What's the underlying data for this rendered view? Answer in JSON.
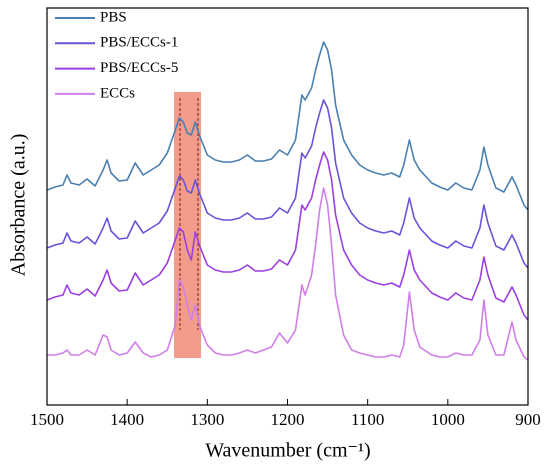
{
  "chart_data": {
    "type": "line",
    "xlabel": "Wavenumber (cm⁻¹)",
    "ylabel": "Absorbance (a.u.)",
    "xlim": [
      1500,
      900
    ],
    "xticks": [
      1500,
      1400,
      1300,
      1200,
      1100,
      1000,
      900
    ],
    "ylim": [
      0,
      397
    ],
    "legend": "upper left",
    "x": [
      1500,
      1490,
      1480,
      1475,
      1470,
      1460,
      1450,
      1440,
      1430,
      1425,
      1420,
      1410,
      1400,
      1390,
      1380,
      1370,
      1360,
      1350,
      1340,
      1335,
      1330,
      1325,
      1320,
      1315,
      1310,
      1300,
      1290,
      1280,
      1270,
      1260,
      1250,
      1240,
      1230,
      1220,
      1210,
      1200,
      1190,
      1182,
      1178,
      1170,
      1165,
      1160,
      1155,
      1150,
      1145,
      1140,
      1130,
      1120,
      1110,
      1100,
      1090,
      1080,
      1070,
      1060,
      1055,
      1048,
      1042,
      1035,
      1020,
      1010,
      1000,
      990,
      980,
      970,
      960,
      955,
      950,
      940,
      930,
      920,
      915,
      905,
      900
    ],
    "series": [
      {
        "name": "PBS",
        "color": "#4a7fb0",
        "values": [
          215,
          218,
          220,
          230,
          222,
          220,
          226,
          219,
          235,
          245,
          232,
          224,
          225,
          242,
          230,
          235,
          240,
          252,
          275,
          287,
          283,
          272,
          270,
          283,
          270,
          250,
          245,
          243,
          243,
          245,
          250,
          244,
          244,
          246,
          255,
          250,
          265,
          310,
          305,
          317,
          335,
          350,
          363,
          355,
          335,
          300,
          265,
          250,
          240,
          235,
          232,
          230,
          232,
          228,
          240,
          265,
          245,
          235,
          222,
          218,
          215,
          222,
          217,
          215,
          235,
          258,
          240,
          217,
          213,
          228,
          220,
          200,
          195
        ]
      },
      {
        "name": "PBS/ECCs-1",
        "color": "#6655d8",
        "values": [
          157,
          160,
          162,
          172,
          164,
          162,
          168,
          161,
          177,
          187,
          174,
          166,
          167,
          184,
          172,
          177,
          182,
          194,
          217,
          229,
          225,
          214,
          212,
          225,
          212,
          192,
          187,
          185,
          185,
          187,
          192,
          186,
          186,
          188,
          197,
          192,
          207,
          252,
          247,
          259,
          277,
          292,
          305,
          297,
          277,
          242,
          207,
          192,
          182,
          177,
          174,
          172,
          174,
          170,
          182,
          207,
          187,
          177,
          164,
          160,
          157,
          164,
          159,
          157,
          177,
          200,
          182,
          159,
          155,
          170,
          162,
          142,
          137
        ]
      },
      {
        "name": "PBS/ECCs-5",
        "color": "#9b3fe0",
        "values": [
          105,
          108,
          110,
          120,
          112,
          110,
          116,
          109,
          125,
          135,
          122,
          114,
          115,
          132,
          120,
          125,
          130,
          142,
          165,
          177,
          173,
          155,
          145,
          173,
          160,
          140,
          135,
          133,
          133,
          135,
          140,
          134,
          134,
          136,
          145,
          140,
          155,
          200,
          195,
          207,
          225,
          240,
          253,
          245,
          225,
          190,
          155,
          140,
          130,
          125,
          122,
          120,
          122,
          118,
          130,
          155,
          135,
          125,
          112,
          108,
          105,
          112,
          107,
          105,
          125,
          148,
          130,
          107,
          103,
          118,
          110,
          90,
          85
        ]
      },
      {
        "name": "ECCs",
        "color": "#d07fe8",
        "values": [
          50,
          50,
          52,
          55,
          50,
          50,
          55,
          50,
          70,
          68,
          55,
          50,
          52,
          63,
          52,
          48,
          50,
          55,
          80,
          125,
          118,
          100,
          85,
          100,
          80,
          60,
          52,
          50,
          50,
          52,
          55,
          52,
          55,
          58,
          72,
          62,
          75,
          120,
          110,
          130,
          160,
          195,
          217,
          200,
          160,
          110,
          70,
          55,
          52,
          50,
          48,
          48,
          50,
          48,
          60,
          113,
          75,
          58,
          50,
          48,
          48,
          52,
          50,
          50,
          65,
          105,
          70,
          50,
          50,
          83,
          65,
          48,
          45
        ]
      }
    ]
  }
}
